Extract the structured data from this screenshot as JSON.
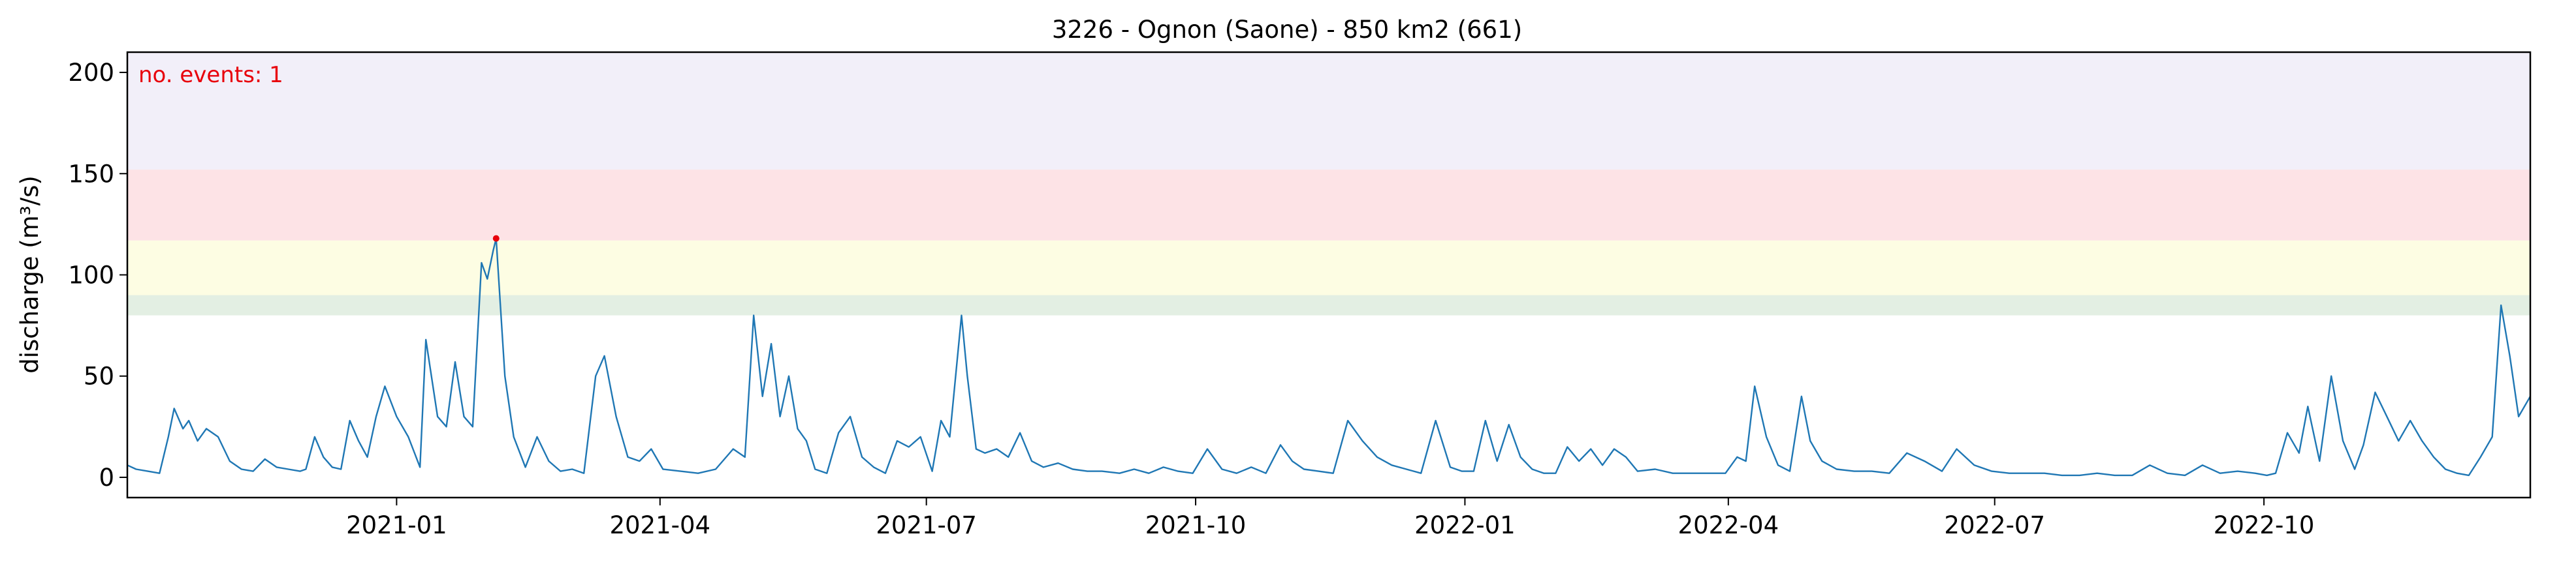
{
  "chart_data": {
    "type": "line",
    "title": "3226 - Ognon (Saone) - 850 km2 (661)",
    "xlabel": "",
    "ylabel": "discharge (m³/s)",
    "xlim": [
      "2020-10-01",
      "2022-12-31"
    ],
    "ylim": [
      -10,
      210
    ],
    "yticks": [
      0,
      50,
      100,
      150,
      200
    ],
    "xticks": [
      "2021-01",
      "2021-04",
      "2021-07",
      "2021-10",
      "2022-01",
      "2022-04",
      "2022-07",
      "2022-10"
    ],
    "annotation": "no. events: 1",
    "bands": [
      {
        "from": 80,
        "to": 90,
        "color": "#e3efe3"
      },
      {
        "from": 90,
        "to": 117,
        "color": "#fdfde3"
      },
      {
        "from": 117,
        "to": 152,
        "color": "#fde3e6"
      },
      {
        "from": 152,
        "to": 210,
        "color": "#f2eff9"
      }
    ],
    "events": [
      {
        "x": "2021-02-04",
        "y": 118
      }
    ],
    "series": [
      {
        "color": "#1f77b4",
        "x": [
          "2020-10-01",
          "2020-10-04",
          "2020-10-08",
          "2020-10-12",
          "2020-10-15",
          "2020-10-17",
          "2020-10-20",
          "2020-10-22",
          "2020-10-25",
          "2020-10-28",
          "2020-11-01",
          "2020-11-05",
          "2020-11-09",
          "2020-11-13",
          "2020-11-17",
          "2020-11-21",
          "2020-11-25",
          "2020-11-29",
          "2020-12-01",
          "2020-12-04",
          "2020-12-07",
          "2020-12-10",
          "2020-12-13",
          "2020-12-16",
          "2020-12-19",
          "2020-12-22",
          "2020-12-25",
          "2020-12-28",
          "2021-01-01",
          "2021-01-05",
          "2021-01-09",
          "2021-01-11",
          "2021-01-15",
          "2021-01-18",
          "2021-01-21",
          "2021-01-24",
          "2021-01-27",
          "2021-01-30",
          "2021-02-01",
          "2021-02-03",
          "2021-02-04",
          "2021-02-07",
          "2021-02-10",
          "2021-02-14",
          "2021-02-18",
          "2021-02-22",
          "2021-02-26",
          "2021-03-02",
          "2021-03-06",
          "2021-03-10",
          "2021-03-13",
          "2021-03-17",
          "2021-03-21",
          "2021-03-25",
          "2021-03-29",
          "2021-04-02",
          "2021-04-08",
          "2021-04-14",
          "2021-04-20",
          "2021-04-26",
          "2021-04-30",
          "2021-05-03",
          "2021-05-06",
          "2021-05-09",
          "2021-05-12",
          "2021-05-15",
          "2021-05-18",
          "2021-05-21",
          "2021-05-24",
          "2021-05-28",
          "2021-06-01",
          "2021-06-05",
          "2021-06-09",
          "2021-06-13",
          "2021-06-17",
          "2021-06-21",
          "2021-06-25",
          "2021-06-29",
          "2021-07-03",
          "2021-07-06",
          "2021-07-09",
          "2021-07-13",
          "2021-07-15",
          "2021-07-18",
          "2021-07-21",
          "2021-07-25",
          "2021-07-29",
          "2021-08-02",
          "2021-08-06",
          "2021-08-10",
          "2021-08-15",
          "2021-08-20",
          "2021-08-25",
          "2021-08-30",
          "2021-09-05",
          "2021-09-10",
          "2021-09-15",
          "2021-09-20",
          "2021-09-25",
          "2021-09-30",
          "2021-10-05",
          "2021-10-10",
          "2021-10-15",
          "2021-10-20",
          "2021-10-25",
          "2021-10-30",
          "2021-11-03",
          "2021-11-07",
          "2021-11-12",
          "2021-11-17",
          "2021-11-22",
          "2021-11-27",
          "2021-12-02",
          "2021-12-07",
          "2021-12-12",
          "2021-12-17",
          "2021-12-22",
          "2021-12-27",
          "2021-12-31",
          "2022-01-04",
          "2022-01-08",
          "2022-01-12",
          "2022-01-16",
          "2022-01-20",
          "2022-01-24",
          "2022-01-28",
          "2022-02-01",
          "2022-02-05",
          "2022-02-09",
          "2022-02-13",
          "2022-02-17",
          "2022-02-21",
          "2022-02-25",
          "2022-03-01",
          "2022-03-07",
          "2022-03-13",
          "2022-03-19",
          "2022-03-25",
          "2022-03-31",
          "2022-04-04",
          "2022-04-07",
          "2022-04-10",
          "2022-04-14",
          "2022-04-18",
          "2022-04-22",
          "2022-04-26",
          "2022-04-29",
          "2022-05-03",
          "2022-05-08",
          "2022-05-14",
          "2022-05-20",
          "2022-05-26",
          "2022-06-01",
          "2022-06-07",
          "2022-06-13",
          "2022-06-18",
          "2022-06-24",
          "2022-06-30",
          "2022-07-06",
          "2022-07-12",
          "2022-07-18",
          "2022-07-24",
          "2022-07-30",
          "2022-08-05",
          "2022-08-11",
          "2022-08-17",
          "2022-08-23",
          "2022-08-29",
          "2022-09-04",
          "2022-09-10",
          "2022-09-16",
          "2022-09-22",
          "2022-09-28",
          "2022-10-02",
          "2022-10-05",
          "2022-10-09",
          "2022-10-13",
          "2022-10-16",
          "2022-10-20",
          "2022-10-24",
          "2022-10-28",
          "2022-11-01",
          "2022-11-04",
          "2022-11-08",
          "2022-11-12",
          "2022-11-16",
          "2022-11-20",
          "2022-11-24",
          "2022-11-28",
          "2022-12-02",
          "2022-12-06",
          "2022-12-10",
          "2022-12-14",
          "2022-12-18",
          "2022-12-21",
          "2022-12-24",
          "2022-12-27",
          "2022-12-31"
        ],
        "y": [
          6,
          4,
          3,
          2,
          20,
          34,
          24,
          28,
          18,
          24,
          20,
          8,
          4,
          3,
          9,
          5,
          4,
          3,
          4,
          20,
          10,
          5,
          4,
          28,
          18,
          10,
          30,
          45,
          30,
          20,
          5,
          68,
          30,
          25,
          57,
          30,
          25,
          106,
          98,
          112,
          118,
          50,
          20,
          5,
          20,
          8,
          3,
          4,
          2,
          50,
          60,
          30,
          10,
          8,
          14,
          4,
          3,
          2,
          4,
          14,
          10,
          80,
          40,
          66,
          30,
          50,
          24,
          18,
          4,
          2,
          22,
          30,
          10,
          5,
          2,
          18,
          15,
          20,
          3,
          28,
          20,
          80,
          50,
          14,
          12,
          14,
          10,
          22,
          8,
          5,
          7,
          4,
          3,
          3,
          2,
          4,
          2,
          5,
          3,
          2,
          14,
          4,
          2,
          5,
          2,
          16,
          8,
          4,
          3,
          2,
          28,
          18,
          10,
          6,
          4,
          2,
          28,
          5,
          3,
          3,
          28,
          8,
          26,
          10,
          4,
          2,
          2,
          15,
          8,
          14,
          6,
          14,
          10,
          3,
          4,
          2,
          2,
          2,
          2,
          10,
          8,
          45,
          20,
          6,
          3,
          40,
          18,
          8,
          4,
          3,
          3,
          2,
          12,
          8,
          3,
          14,
          6,
          3,
          2,
          2,
          2,
          1,
          1,
          2,
          1,
          1,
          6,
          2,
          1,
          6,
          2,
          3,
          2,
          1,
          2,
          22,
          12,
          35,
          8,
          50,
          18,
          4,
          16,
          42,
          30,
          18,
          28,
          18,
          10,
          4,
          2,
          1,
          10,
          20,
          85,
          60,
          30,
          40
        ]
      }
    ]
  }
}
